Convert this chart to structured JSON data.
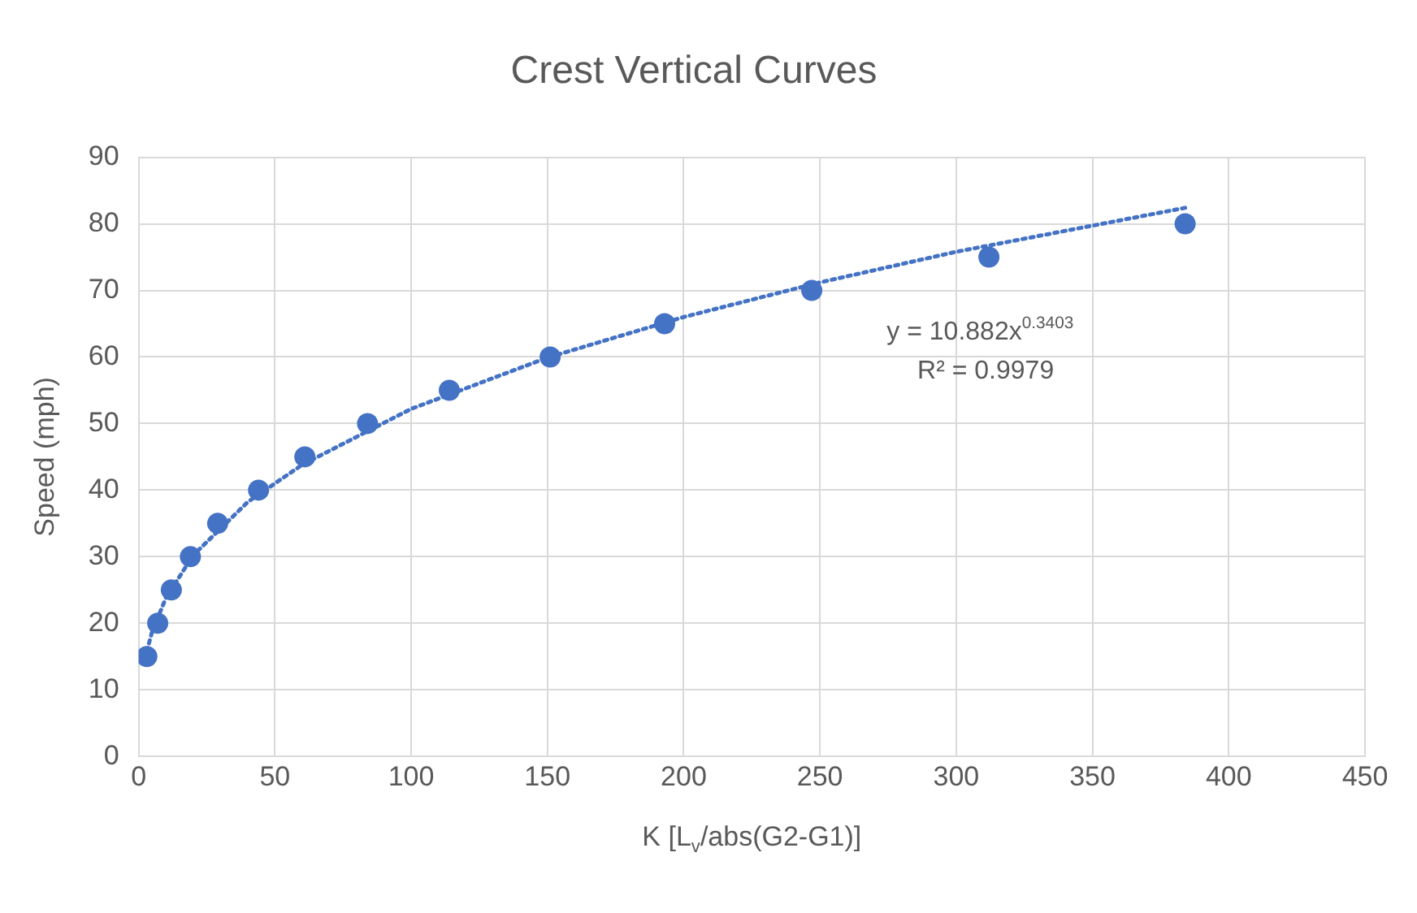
{
  "chart_data": {
    "type": "scatter",
    "title": "Crest Vertical Curves",
    "xlabel": "K [L$_{v}$/abs(G2-G1)]",
    "ylabel": "Speed (mph)",
    "xlim": [
      0,
      450
    ],
    "xticks": [
      0,
      50,
      100,
      150,
      200,
      250,
      300,
      350,
      400,
      450
    ],
    "ylim": [
      0,
      90
    ],
    "yticks": [
      0,
      10,
      20,
      30,
      40,
      50,
      60,
      70,
      80,
      90
    ],
    "grid": true,
    "legend": false,
    "annotations": [
      "y = 10.882x$^{0.3403}$",
      "R² = 0.9979"
    ],
    "series": [
      {
        "color": "#4472c4",
        "marker": "circle",
        "x": [
          3,
          7,
          12,
          19,
          29,
          44,
          61,
          84,
          114,
          151,
          193,
          247,
          312,
          384
        ],
        "values": [
          15,
          20,
          25,
          30,
          35,
          40,
          45,
          50,
          55,
          60,
          65,
          70,
          75,
          80
        ]
      },
      {
        "type": "line",
        "color": "#4472c4",
        "line_style": "dotted",
        "marker": "none",
        "x": [
          3,
          5,
          10,
          20,
          40,
          60,
          100,
          150,
          200,
          250,
          300,
          384
        ],
        "values": [
          15.8,
          18.8,
          23.8,
          30.2,
          38.2,
          43.8,
          52.2,
          59.9,
          66.0,
          71.2,
          75.8,
          82.4
        ]
      }
    ]
  }
}
